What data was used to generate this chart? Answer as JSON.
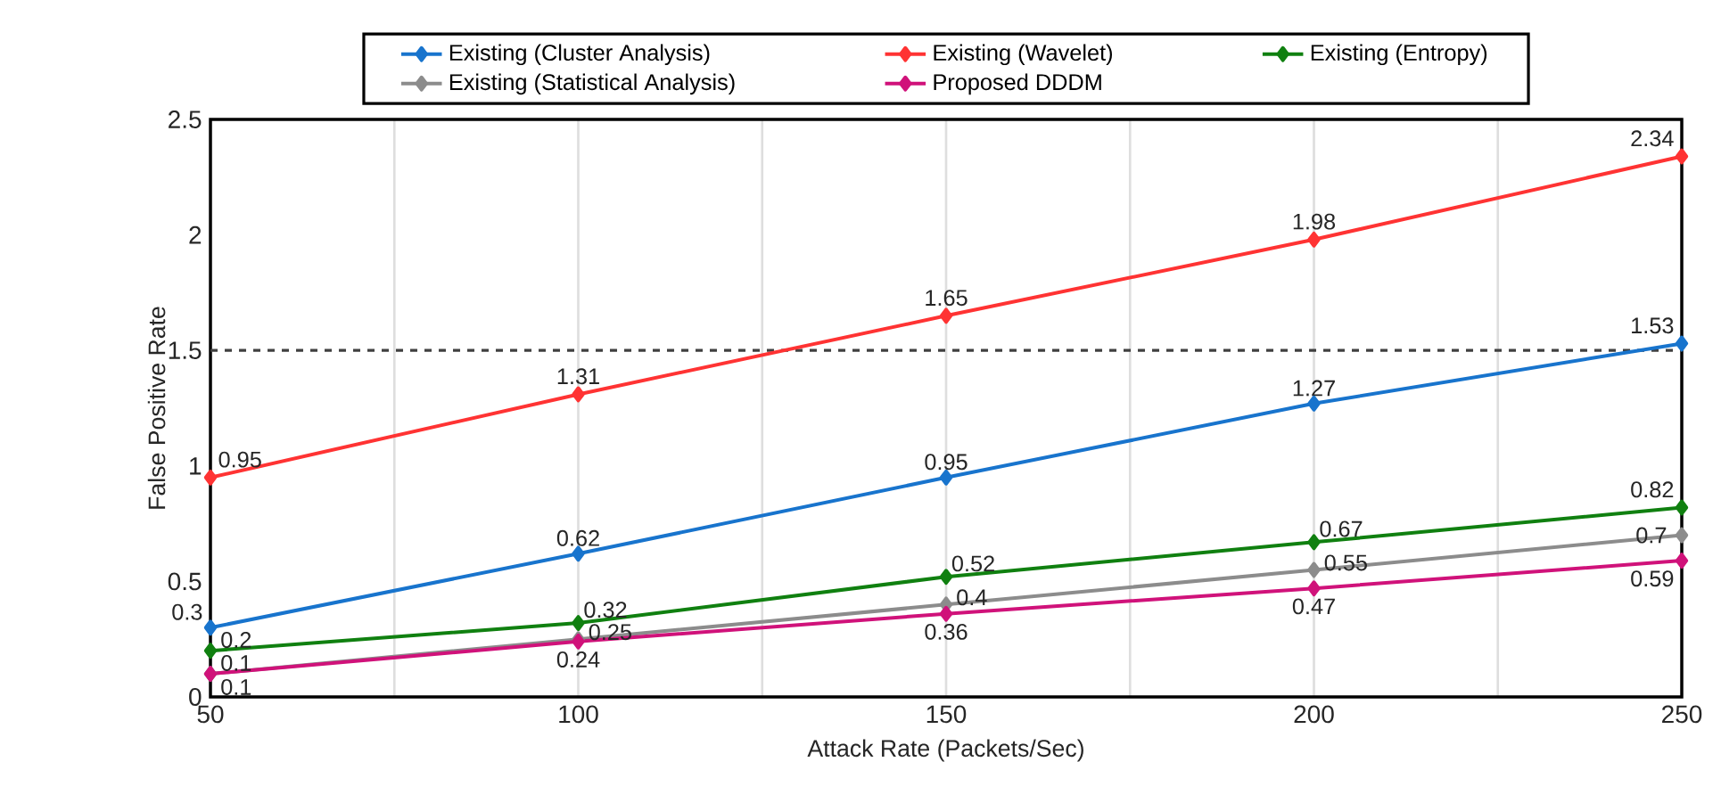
{
  "chart_data": {
    "type": "line",
    "xlabel": "Attack Rate (Packets/Sec)",
    "ylabel": "False Positive Rate",
    "x": [
      50,
      100,
      150,
      200,
      250
    ],
    "series": [
      {
        "name": "Existing (Cluster Analysis)",
        "color": "#1874cd",
        "values": [
          0.3,
          0.62,
          0.95,
          1.27,
          1.53
        ]
      },
      {
        "name": "Existing (Wavelet)",
        "color": "#ff3333",
        "values": [
          0.95,
          1.31,
          1.65,
          1.98,
          2.34
        ]
      },
      {
        "name": "Existing (Entropy)",
        "color": "#108010",
        "values": [
          0.2,
          0.32,
          0.52,
          0.67,
          0.82
        ]
      },
      {
        "name": "Existing (Statistical Analysis)",
        "color": "#8c8c8c",
        "values": [
          0.1,
          0.25,
          0.4,
          0.55,
          0.7
        ]
      },
      {
        "name": "Proposed DDDM",
        "color": "#d0127a",
        "values": [
          0.1,
          0.24,
          0.36,
          0.47,
          0.59
        ]
      }
    ],
    "xlim": [
      50,
      250
    ],
    "ylim": [
      0,
      2.5
    ],
    "xticks": [
      50,
      {
        "value": 75,
        "label": null
      },
      100,
      {
        "value": 125,
        "label": null
      },
      150,
      {
        "value": 175,
        "label": null
      },
      200,
      {
        "value": 225,
        "label": null
      },
      250
    ],
    "yticks": [
      0,
      0.5,
      1,
      1.5,
      2,
      2.5
    ],
    "ref_lines": [
      {
        "axis": "y",
        "value": 1.5,
        "color": "#404040",
        "line_style": "dashed"
      }
    ],
    "data_labels": true,
    "grid": "x",
    "legend": "top",
    "marker": "diamond",
    "line_style": "solid"
  }
}
